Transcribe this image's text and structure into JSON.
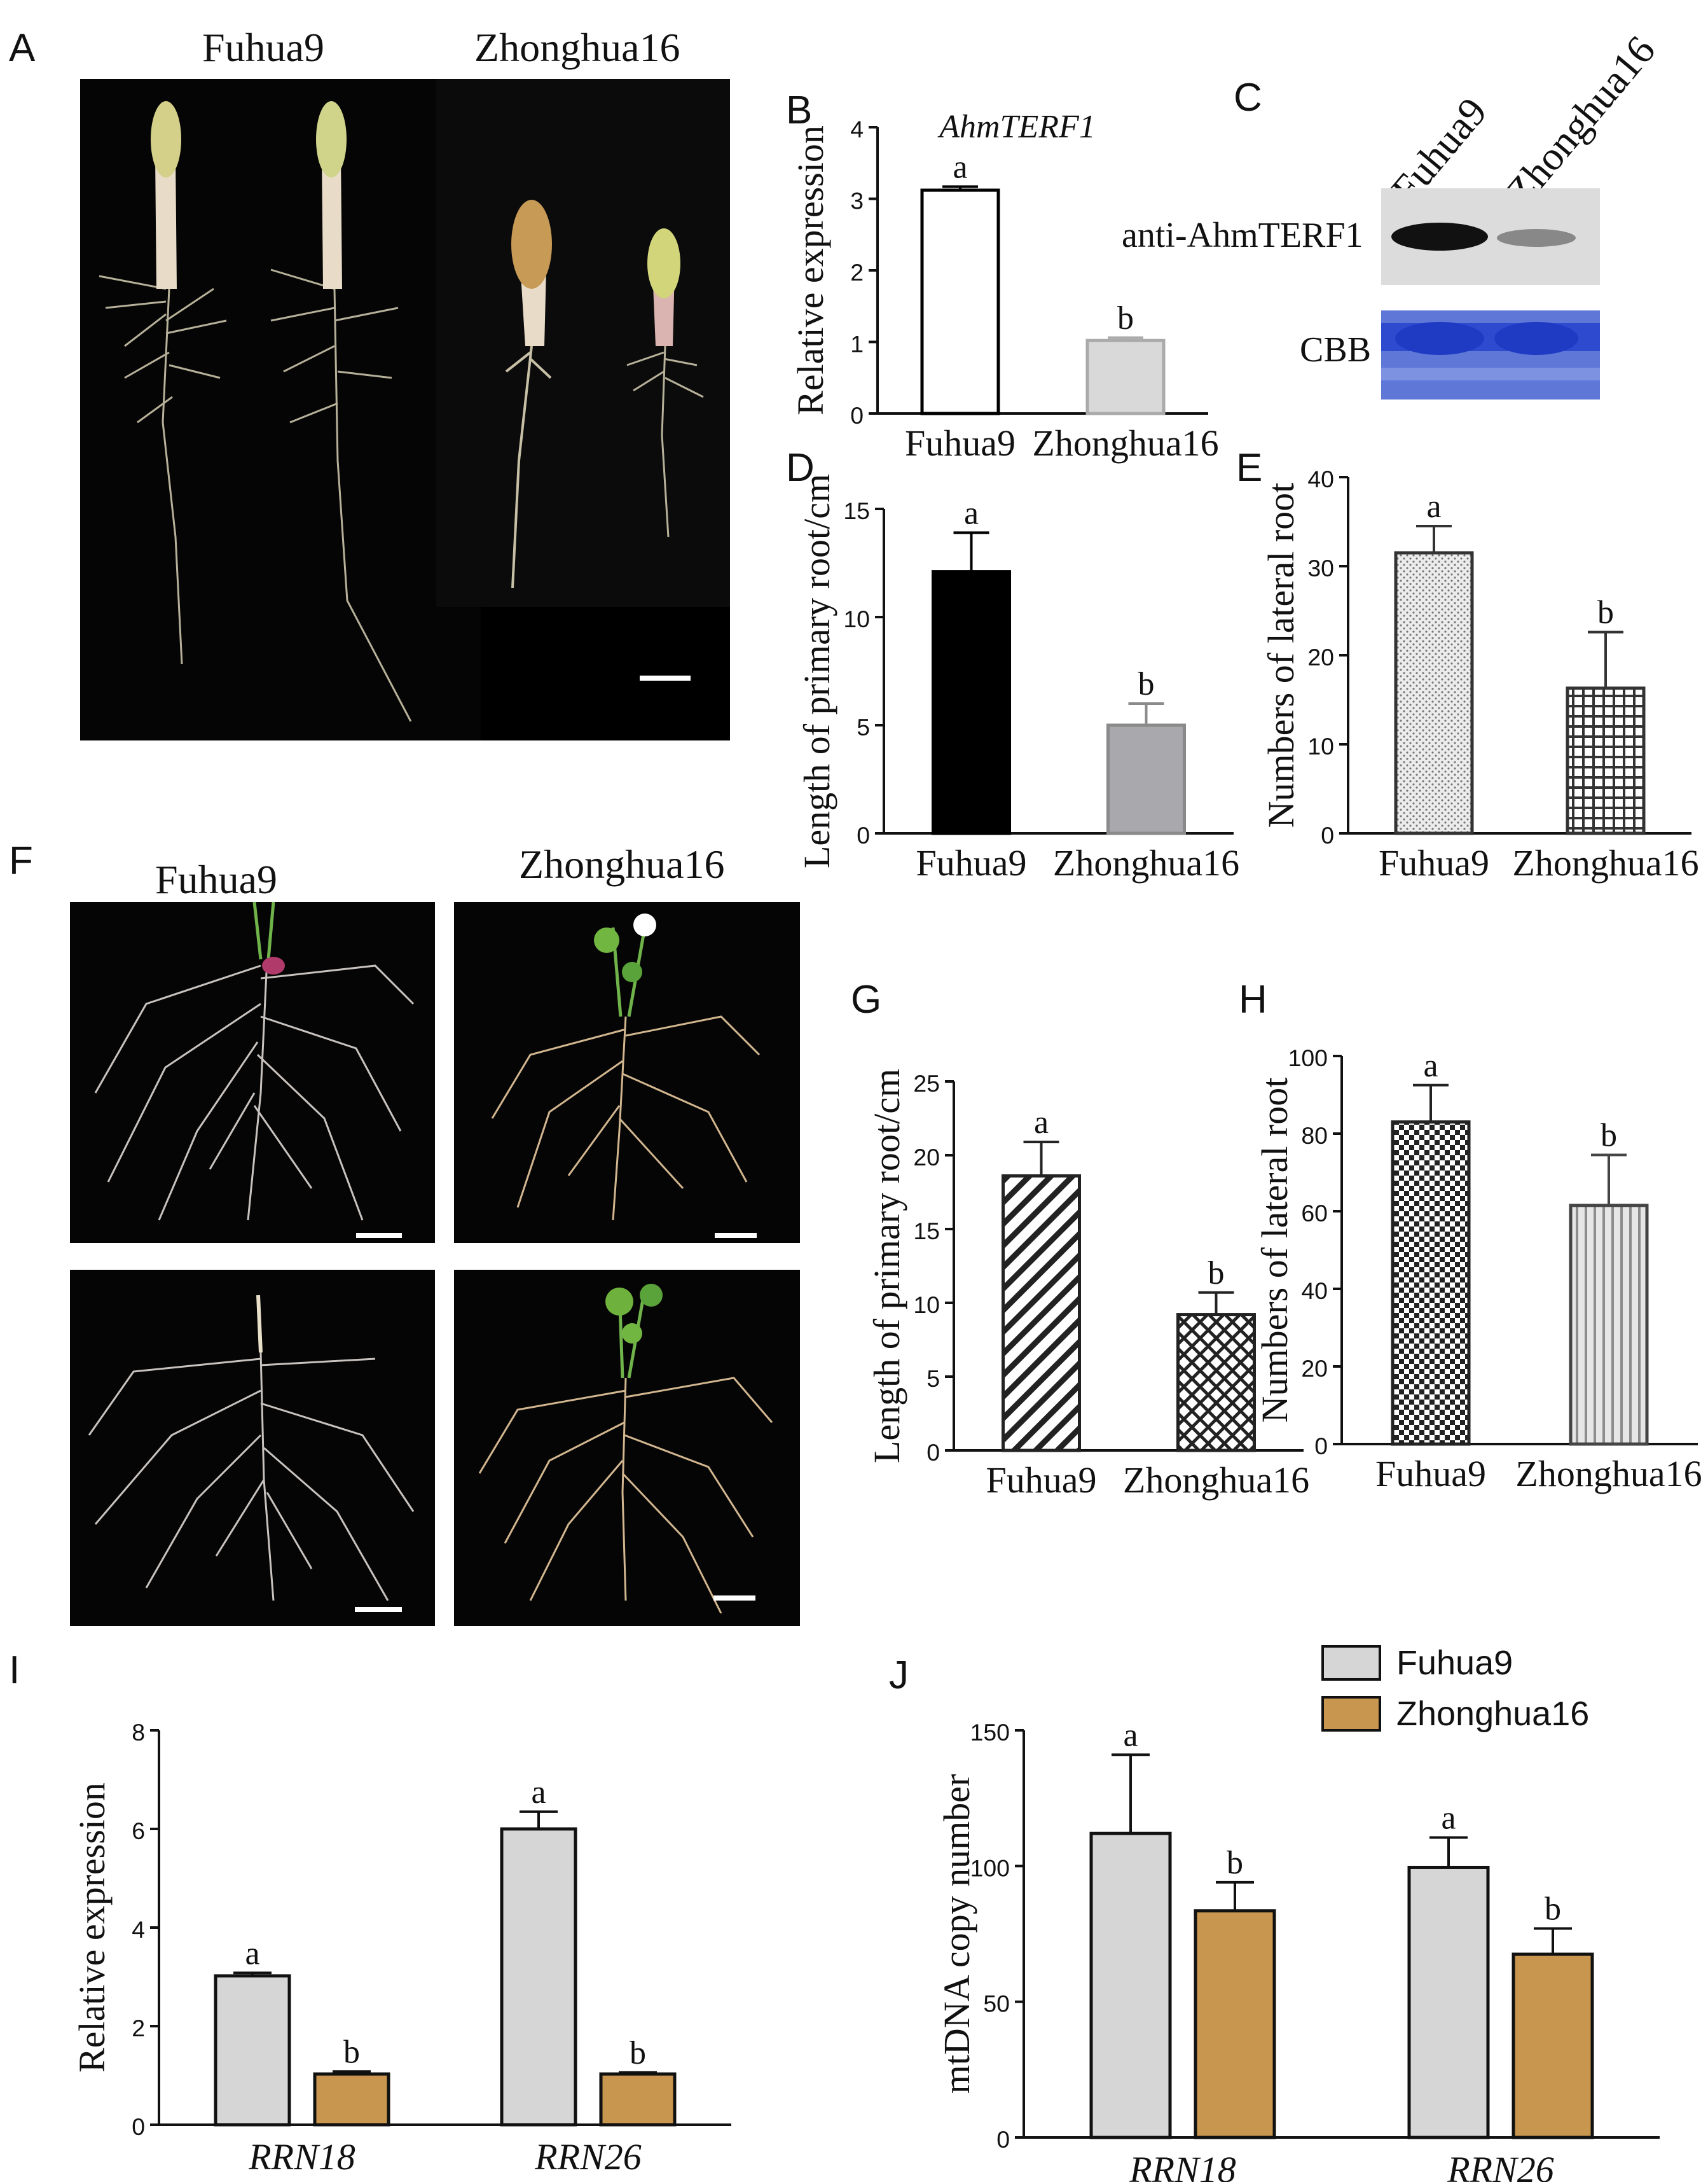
{
  "panels": {
    "A": {
      "letter": "A",
      "genotypes": [
        "Fuhua9",
        "Zhonghua16"
      ]
    },
    "B": {
      "letter": "B"
    },
    "C": {
      "letter": "C",
      "lanes": [
        "Fuhua9",
        "Zhonghua16"
      ],
      "rows": [
        "anti-AhmTERF1",
        "CBB"
      ]
    },
    "D": {
      "letter": "D"
    },
    "E": {
      "letter": "E"
    },
    "F": {
      "letter": "F",
      "genotypes": [
        "Fuhua9",
        "Zhonghua16"
      ]
    },
    "G": {
      "letter": "G"
    },
    "H": {
      "letter": "H"
    },
    "I": {
      "letter": "I"
    },
    "J": {
      "letter": "J"
    }
  },
  "colors": {
    "gray_bar": "#d6d6d6",
    "orange_bar": "#c8964e",
    "black_bar": "#000000",
    "light_gray": "#a8a8ad",
    "wb_blue": "#3552c8"
  },
  "chart_data": [
    {
      "id": "B",
      "type": "bar",
      "title": "AhmTERF1",
      "categories": [
        "Fuhua9",
        "Zhonghua16"
      ],
      "values": [
        3.12,
        1.02
      ],
      "errors": [
        0.05,
        0.04
      ],
      "letters": [
        "a",
        "b"
      ],
      "ylabel": "Relative expression",
      "ylim": [
        0,
        4
      ],
      "yticks": [
        "0",
        "1",
        "2",
        "3",
        "4"
      ]
    },
    {
      "id": "D",
      "type": "bar",
      "categories": [
        "Fuhua9",
        "Zhonghua16"
      ],
      "values": [
        12.1,
        5.0
      ],
      "errors": [
        1.8,
        1.0
      ],
      "letters": [
        "a",
        "b"
      ],
      "ylabel": "Length of primary root/cm",
      "ylim": [
        0,
        15
      ],
      "yticks": [
        "0",
        "5",
        "10",
        "15"
      ]
    },
    {
      "id": "E",
      "type": "bar",
      "categories": [
        "Fuhua9",
        "Zhonghua16"
      ],
      "values": [
        31.5,
        16.3
      ],
      "errors": [
        3.0,
        6.3
      ],
      "letters": [
        "a",
        "b"
      ],
      "ylabel": "Numbers of lateral root",
      "ylim": [
        0,
        40
      ],
      "yticks": [
        "0",
        "10",
        "20",
        "30",
        "40"
      ]
    },
    {
      "id": "G",
      "type": "bar",
      "categories": [
        "Fuhua9",
        "Zhonghua16"
      ],
      "values": [
        18.6,
        9.2
      ],
      "errors": [
        2.3,
        1.5
      ],
      "letters": [
        "a",
        "b"
      ],
      "ylabel": "Length of primary root/cm",
      "ylim": [
        0,
        25
      ],
      "yticks": [
        "0",
        "5",
        "10",
        "15",
        "20",
        "25"
      ]
    },
    {
      "id": "H",
      "type": "bar",
      "categories": [
        "Fuhua9",
        "Zhonghua16"
      ],
      "values": [
        83.0,
        61.5
      ],
      "errors": [
        9.5,
        13.0
      ],
      "letters": [
        "a",
        "b"
      ],
      "ylabel": "Numbers of lateral root",
      "ylim": [
        0,
        100
      ],
      "yticks": [
        "0",
        "20",
        "40",
        "60",
        "80",
        "100"
      ]
    },
    {
      "id": "I",
      "type": "bar",
      "categories": [
        "RRN18",
        "RRN26"
      ],
      "series": [
        {
          "name": "Fuhua9",
          "values": [
            3.02,
            6.0
          ],
          "errors": [
            0.06,
            0.35
          ],
          "letters": [
            "a",
            "a"
          ]
        },
        {
          "name": "Zhonghua16",
          "values": [
            1.03,
            1.03
          ],
          "errors": [
            0.05,
            0.03
          ],
          "letters": [
            "b",
            "b"
          ]
        }
      ],
      "ylabel": "Relative expression",
      "ylim": [
        0,
        8
      ],
      "yticks": [
        "0",
        "2",
        "4",
        "6",
        "8"
      ]
    },
    {
      "id": "J",
      "type": "bar",
      "categories": [
        "RRN18",
        "RRN26"
      ],
      "series": [
        {
          "name": "Fuhua9",
          "values": [
            112,
            99.5
          ],
          "errors": [
            29,
            11
          ]
        },
        {
          "name": "Zhonghua16",
          "values": [
            83.5,
            67.5
          ],
          "errors": [
            10.5,
            9.5
          ]
        }
      ],
      "letters_series": [
        [
          "a",
          "a"
        ],
        [
          "b",
          "b"
        ]
      ],
      "ylabel": "mtDNA copy number",
      "ylim": [
        0,
        150
      ],
      "yticks": [
        "0",
        "50",
        "100",
        "150"
      ],
      "legend": [
        "Fuhua9",
        "Zhonghua16"
      ],
      "legend_position": "top-right"
    }
  ]
}
